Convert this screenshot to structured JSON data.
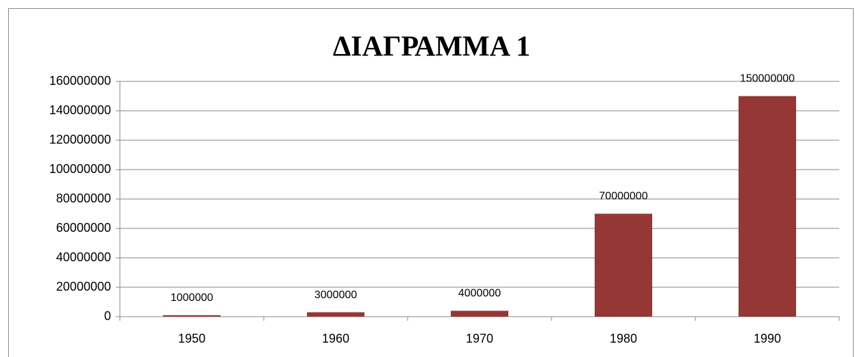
{
  "chart_data": {
    "type": "bar",
    "title": "ΔΙΑΓΡΑΜΜΑ 1",
    "categories": [
      "1950",
      "1960",
      "1970",
      "1980",
      "1990"
    ],
    "values": [
      1000000,
      3000000,
      4000000,
      70000000,
      150000000
    ],
    "color": "#953735",
    "ylim": [
      0,
      160000000
    ],
    "yticks": [
      0,
      20000000,
      40000000,
      60000000,
      80000000,
      100000000,
      120000000,
      140000000,
      160000000
    ],
    "grid": true
  }
}
